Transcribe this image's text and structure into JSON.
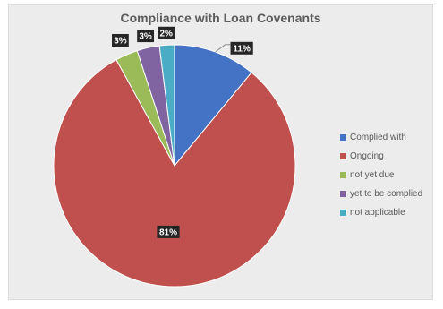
{
  "chart_data": {
    "type": "pie",
    "title": "Compliance with Loan Covenants",
    "categories": [
      "Complied with",
      "Ongoing",
      "not yet due",
      "yet to be complied",
      "not applicable"
    ],
    "values": [
      11,
      81,
      3,
      3,
      2
    ],
    "data_labels": [
      "11%",
      "81%",
      "3%",
      "3%",
      "2%"
    ],
    "colors": [
      "#4472c4",
      "#c0504d",
      "#9bbb59",
      "#8064a2",
      "#4bacc6"
    ],
    "start_angle_deg": 0,
    "direction": "clockwise",
    "legend_position": "right"
  }
}
